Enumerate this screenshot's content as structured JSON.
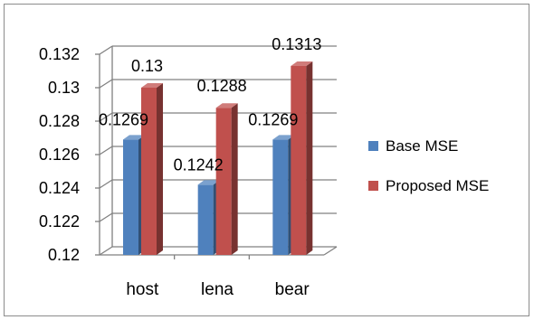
{
  "chart_data": {
    "type": "bar",
    "style": "3d-clustered-column",
    "categories": [
      "host",
      "lena",
      "bear"
    ],
    "series": [
      {
        "name": "Base MSE",
        "values": [
          0.1269,
          0.1242,
          0.1269
        ],
        "labels": [
          "0.1269",
          "0.1242",
          "0.1269"
        ],
        "color": "#4f81bd"
      },
      {
        "name": "Proposed MSE",
        "values": [
          0.13,
          0.1288,
          0.1313
        ],
        "labels": [
          "0.13",
          "0.1288",
          "0.1313"
        ],
        "color": "#c0504d"
      }
    ],
    "ylim": [
      0.12,
      0.132
    ],
    "yticks": [
      "0.12",
      "0.122",
      "0.124",
      "0.126",
      "0.128",
      "0.13",
      "0.132"
    ],
    "grid": true,
    "legend_position": "right",
    "title": "",
    "xlabel": "",
    "ylabel": ""
  }
}
